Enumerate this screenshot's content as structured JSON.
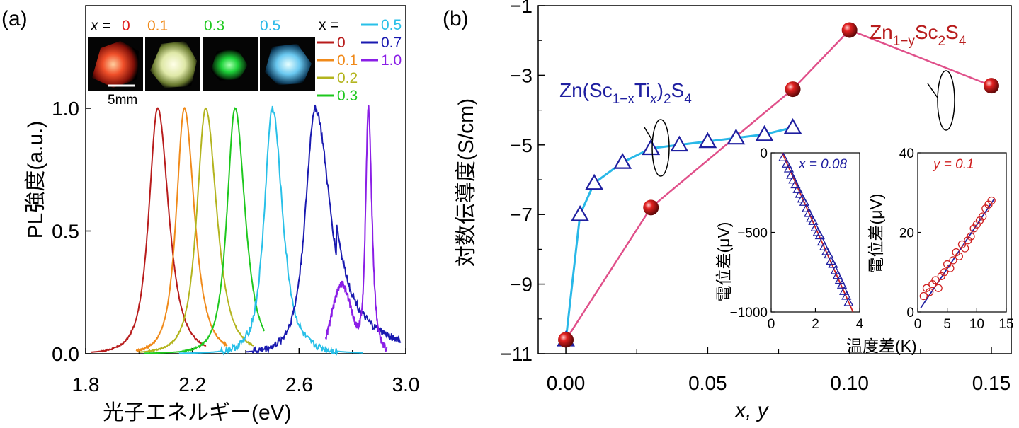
{
  "chart_data": [
    {
      "panel_label": "(a)",
      "type": "line",
      "xlabel": "光子エネルギー(eV)",
      "ylabel": "PL強度(a.u.)",
      "xlim": [
        1.8,
        3.0
      ],
      "ylim": [
        0.0,
        1.0
      ],
      "xticks": [
        "1.8",
        "2.2",
        "2.6",
        "3.0"
      ],
      "yticks": [
        "0.0",
        "0.5",
        "1.0"
      ],
      "legend_title": "x =",
      "series": [
        {
          "name": "0",
          "color": "#b81c1c",
          "peak": 2.07,
          "fwhm": 0.11,
          "start": 1.82,
          "end": 2.25
        },
        {
          "name": "0.1",
          "color": "#f08a1a",
          "peak": 2.17,
          "fwhm": 0.1,
          "start": 1.99,
          "end": 2.33
        },
        {
          "name": "0.2",
          "color": "#b3b41e",
          "peak": 2.25,
          "fwhm": 0.11,
          "start": 2.0,
          "end": 2.43
        },
        {
          "name": "0.3",
          "color": "#1ec81e",
          "peak": 2.36,
          "fwhm": 0.1,
          "start": 2.02,
          "end": 2.47
        },
        {
          "name": "0.5",
          "color": "#29c0e8",
          "peak": 2.5,
          "fwhm": 0.1,
          "start": 2.15,
          "end": 2.84
        },
        {
          "name": "0.7",
          "color": "#1a1ab0",
          "peak": 2.66,
          "fwhm": 0.12,
          "start": 2.4,
          "end": 2.98
        },
        {
          "name": "1.0",
          "color": "#8a1ee6",
          "peak": 2.86,
          "fwhm": 0.035,
          "start": 2.7,
          "end": 2.93
        }
      ],
      "inset_photos": [
        {
          "label_prefix": "x =",
          "label": "0",
          "color": "#e11d1d"
        },
        {
          "label": "0.1",
          "color": "#f08a1a"
        },
        {
          "label": "0.3",
          "color": "#1ec81e"
        },
        {
          "label": "0.5",
          "color": "#29b8e8"
        }
      ],
      "scale_bar": "5mm"
    },
    {
      "panel_label": "(b)",
      "type": "line",
      "xlabel": "x, y",
      "ylabel": "対数伝導度(S/cm)",
      "xlim": [
        -0.01,
        0.157
      ],
      "ylim": [
        -11,
        -1
      ],
      "xticks": [
        "0.00",
        "0.05",
        "0.10",
        "0.15"
      ],
      "yticks": [
        "−1",
        "−3",
        "−5",
        "−7",
        "−9",
        "−11"
      ],
      "series": [
        {
          "name": "Zn(Sc1−xTix)2S4",
          "color": "#1f1fa0",
          "x": [
            0,
            0.005,
            0.01,
            0.02,
            0.03,
            0.04,
            0.05,
            0.06,
            0.07,
            0.08
          ],
          "y": [
            -10.6,
            -7.0,
            -6.1,
            -5.5,
            -5.1,
            -5.0,
            -4.9,
            -4.8,
            -4.7,
            -4.5
          ]
        },
        {
          "name": "Zn1−ySc2S4",
          "color": "#b81c1c",
          "x": [
            0,
            0.03,
            0.08,
            0.1,
            0.15
          ],
          "y": [
            -10.6,
            -6.8,
            -3.4,
            -1.7,
            -3.3
          ]
        }
      ],
      "series_labels": {
        "ti": {
          "main": "Zn(Sc",
          "sub1": "1−x",
          "mid": "Ti",
          "sub2": "x",
          "close": ")",
          "sub3": "2",
          "end": "S",
          "sub4": "4"
        },
        "zn": {
          "main": "Zn",
          "sub1": "1−y",
          "mid": "Sc",
          "sub2": "2",
          "end": "S",
          "sub3": "4"
        }
      },
      "insets": [
        {
          "label": "x = 0.08",
          "xlim": [
            0,
            4
          ],
          "ylim": [
            -1000,
            0
          ],
          "xticks": [
            "0",
            "2",
            "4"
          ],
          "yticks": [
            "0",
            "−500",
            "−1000"
          ],
          "ylabel": "電位差(μV)",
          "marker": "triangle",
          "color": "#1f1fa0",
          "fit_color": "#d02020",
          "x": [
            0.55,
            0.7,
            0.8,
            0.9,
            1.0,
            1.1,
            1.2,
            1.3,
            1.4,
            1.5,
            1.6,
            1.7,
            1.8,
            1.9,
            2.0,
            2.1,
            2.2,
            2.3,
            2.4,
            2.5,
            2.6,
            2.7,
            2.8,
            2.9,
            3.0,
            3.1,
            3.2,
            3.3,
            3.4,
            3.5
          ],
          "y": [
            -30,
            -70,
            -100,
            -140,
            -170,
            -200,
            -230,
            -260,
            -290,
            -310,
            -350,
            -380,
            -410,
            -430,
            -470,
            -500,
            -520,
            -560,
            -590,
            -620,
            -640,
            -680,
            -700,
            -740,
            -770,
            -800,
            -830,
            -870,
            -900,
            -940
          ],
          "fit": {
            "x": [
              0.5,
              3.7
            ],
            "y": [
              0,
              -1000
            ]
          }
        },
        {
          "label": "y = 0.1",
          "xlim": [
            0,
            15
          ],
          "ylim": [
            0,
            40
          ],
          "xticks": [
            "0",
            "5",
            "10",
            "15"
          ],
          "yticks": [
            "0",
            "20",
            "40"
          ],
          "ylabel": "電位差(μV)",
          "marker": "circle",
          "color": "#d02020",
          "fit_color": "#1f1fa0",
          "x": [
            1,
            1.5,
            2,
            2.5,
            3,
            3.5,
            4,
            4.5,
            5,
            5.5,
            6,
            6.5,
            7,
            7.5,
            8,
            8.5,
            9,
            9.5,
            10,
            10.5,
            11,
            11.5,
            12,
            12.5
          ],
          "y": [
            4,
            6,
            5,
            7,
            8,
            6,
            9,
            10,
            12,
            11,
            13,
            15,
            14,
            17,
            16,
            18,
            19,
            21,
            22,
            23,
            24,
            26,
            27,
            28
          ],
          "fit": {
            "x": [
              0.5,
              13
            ],
            "y": [
              1,
              28.5
            ]
          }
        }
      ],
      "shared_inset_xlabel": "温度差(K)"
    }
  ]
}
